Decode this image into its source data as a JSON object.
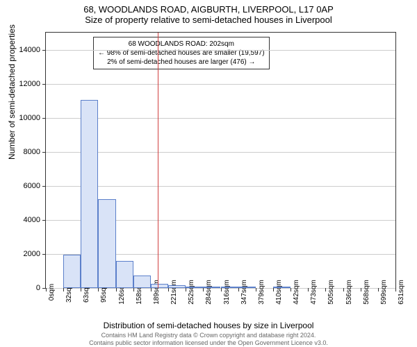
{
  "title_line1": "68, WOODLANDS ROAD, AIGBURTH, LIVERPOOL, L17 0AP",
  "title_line2": "Size of property relative to semi-detached houses in Liverpool",
  "ylabel": "Number of semi-detached properties",
  "xlabel": "Distribution of semi-detached houses by size in Liverpool",
  "footer1": "Contains HM Land Registry data © Crown copyright and database right 2024.",
  "footer2": "Contains public sector information licensed under the Open Government Licence v3.0.",
  "chart": {
    "type": "histogram",
    "ymax": 15000,
    "ytick_step": 2000,
    "yticks": [
      0,
      2000,
      4000,
      6000,
      8000,
      10000,
      12000,
      14000
    ],
    "xticks": [
      "0sqm",
      "32sqm",
      "63sqm",
      "95sqm",
      "126sqm",
      "158sqm",
      "189sqm",
      "221sqm",
      "252sqm",
      "284sqm",
      "316sqm",
      "347sqm",
      "379sqm",
      "410sqm",
      "442sqm",
      "473sqm",
      "505sqm",
      "536sqm",
      "568sqm",
      "599sqm",
      "631sqm"
    ],
    "bars": [
      {
        "bin": 0,
        "value": 0
      },
      {
        "bin": 1,
        "value": 1950
      },
      {
        "bin": 2,
        "value": 11050
      },
      {
        "bin": 3,
        "value": 5200
      },
      {
        "bin": 4,
        "value": 1600
      },
      {
        "bin": 5,
        "value": 730
      },
      {
        "bin": 6,
        "value": 260
      },
      {
        "bin": 7,
        "value": 150
      },
      {
        "bin": 8,
        "value": 100
      },
      {
        "bin": 9,
        "value": 80
      },
      {
        "bin": 10,
        "value": 30
      },
      {
        "bin": 11,
        "value": 20
      },
      {
        "bin": 12,
        "value": 0
      },
      {
        "bin": 13,
        "value": 10
      },
      {
        "bin": 14,
        "value": 0
      },
      {
        "bin": 15,
        "value": 0
      },
      {
        "bin": 16,
        "value": 0
      },
      {
        "bin": 17,
        "value": 0
      },
      {
        "bin": 18,
        "value": 0
      },
      {
        "bin": 19,
        "value": 0
      }
    ],
    "bar_fill": "#d9e3f7",
    "bar_stroke": "#5b7fca",
    "background_color": "#ffffff",
    "grid_color": "#cccccc",
    "marker": {
      "x_value": 202,
      "x_max": 631,
      "color": "#d04040"
    },
    "annotation": {
      "line1": "68 WOODLANDS ROAD: 202sqm",
      "line2": "← 98% of semi-detached houses are smaller (19,597)",
      "line3": "2% of semi-detached houses are larger (476) →"
    }
  }
}
